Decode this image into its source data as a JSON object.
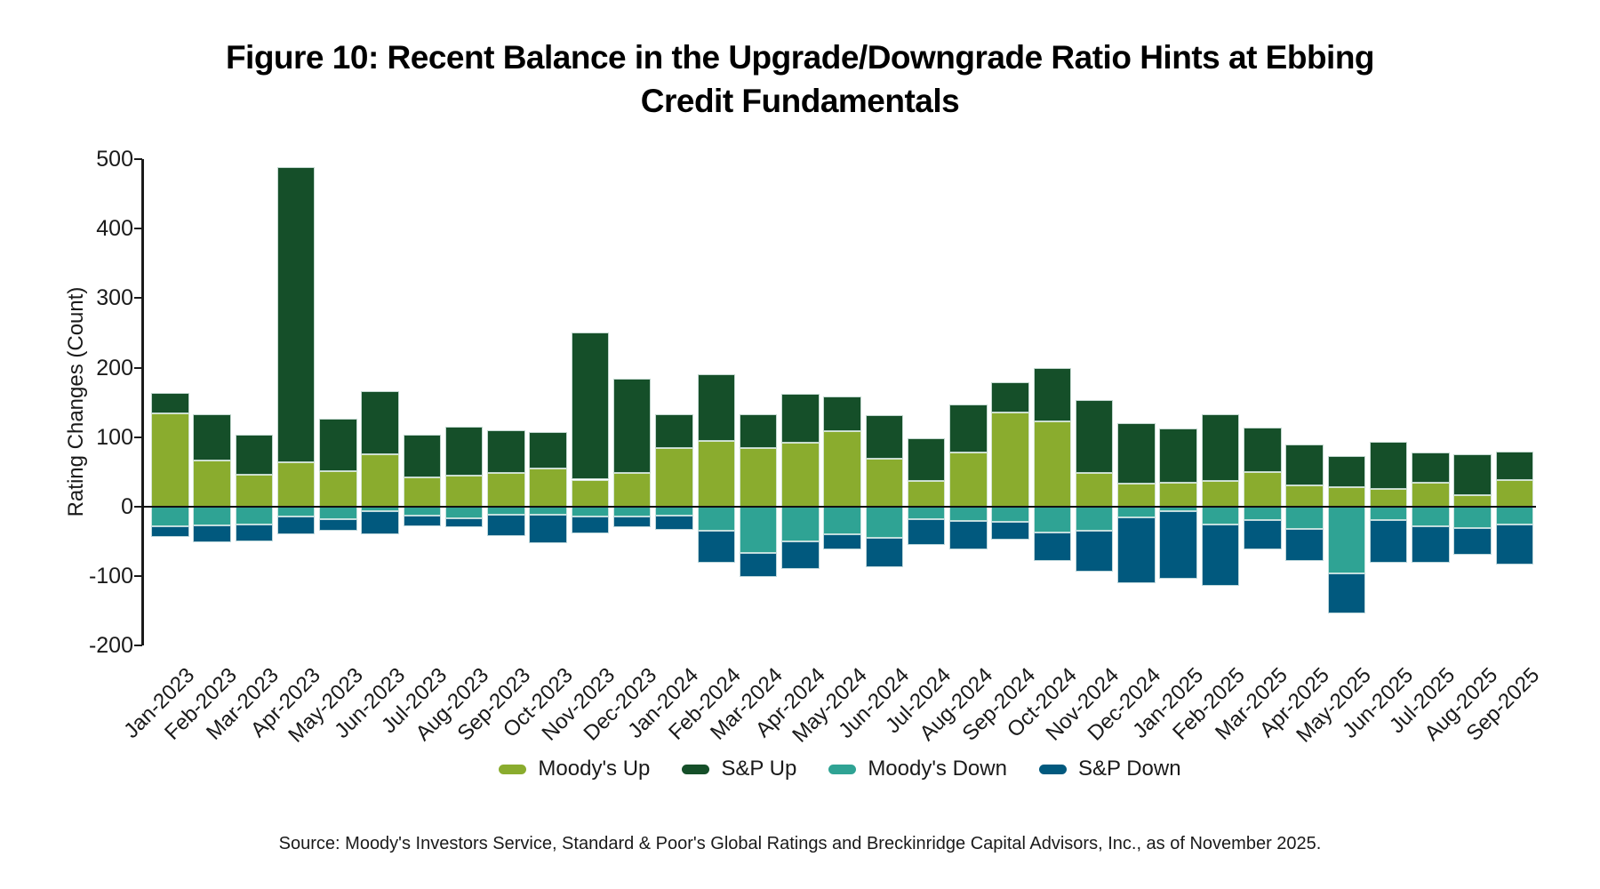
{
  "title": {
    "full": "Figure 10: Recent Balance in the Upgrade/Downgrade Ratio Hints at Ebbing Credit Fundamentals",
    "lines": [
      "Figure 10: Recent Balance in the Upgrade/Downgrade Ratio Hints at Ebbing",
      "Credit Fundamentals"
    ]
  },
  "y_axis": {
    "label": "Rating Changes (Count)",
    "ticks": [
      500,
      400,
      300,
      200,
      100,
      0,
      -100,
      -200
    ]
  },
  "source_note": "Source: Moody's Investors Service, Standard & Poor's Global Ratings and Breckinridge Capital Advisors, Inc., as of November 2025.",
  "colors": {
    "moodys_up": "#8AAC2E",
    "sp_up": "#154F29",
    "moodys_down": "#2FA394",
    "sp_down": "#01597E",
    "axis": "#1a1a1a",
    "background": "#ffffff"
  },
  "chart_data": {
    "type": "bar",
    "stacked": true,
    "grid": false,
    "legend_position": "bottom",
    "title": "Figure 10: Recent Balance in the Upgrade/Downgrade Ratio Hints at Ebbing Credit Fundamentals",
    "xlabel": "",
    "ylabel": "Rating Changes (Count)",
    "ylim": [
      -200,
      500
    ],
    "categories": [
      "Jan-2023",
      "Feb-2023",
      "Mar-2023",
      "Apr-2023",
      "May-2023",
      "Jun-2023",
      "Jul-2023",
      "Aug-2023",
      "Sep-2023",
      "Oct-2023",
      "Nov-2023",
      "Dec-2023",
      "Jan-2024",
      "Feb-2024",
      "Mar-2024",
      "Apr-2024",
      "May-2024",
      "Jun-2024",
      "Jul-2024",
      "Aug-2024",
      "Sep-2024",
      "Oct-2024",
      "Nov-2024",
      "Dec-2024",
      "Jan-2025",
      "Feb-2025",
      "Mar-2025",
      "Apr-2025",
      "May-2025",
      "Jun-2025",
      "Jul-2025",
      "Aug-2025",
      "Sep-2025"
    ],
    "series": [
      {
        "name": "Moody's Up",
        "color": "#8AAC2E",
        "values": [
          134,
          67,
          46,
          64,
          51,
          75,
          42,
          45,
          48,
          55,
          39,
          48,
          85,
          95,
          85,
          92,
          109,
          69,
          37,
          78,
          136,
          123,
          49,
          33,
          34,
          37,
          50,
          31,
          28,
          25,
          35,
          16,
          38
        ]
      },
      {
        "name": "S&P Up",
        "color": "#154F29",
        "values": [
          30,
          66,
          57,
          425,
          76,
          91,
          61,
          70,
          62,
          52,
          212,
          136,
          48,
          96,
          48,
          71,
          50,
          63,
          62,
          69,
          43,
          77,
          104,
          87,
          78,
          96,
          64,
          59,
          45,
          68,
          43,
          59,
          41
        ]
      },
      {
        "name": "Moody's Down",
        "color": "#2FA394",
        "values": [
          -28,
          -27,
          -26,
          -14,
          -18,
          -7,
          -13,
          -16,
          -11,
          -12,
          -14,
          -14,
          -13,
          -34,
          -67,
          -50,
          -40,
          -45,
          -18,
          -20,
          -22,
          -37,
          -35,
          -15,
          -7,
          -25,
          -19,
          -32,
          -96,
          -19,
          -28,
          -31,
          -25
        ]
      },
      {
        "name": "S&P Down",
        "color": "#01597E",
        "values": [
          -15,
          -24,
          -24,
          -26,
          -17,
          -33,
          -15,
          -13,
          -31,
          -40,
          -24,
          -15,
          -20,
          -46,
          -34,
          -39,
          -22,
          -42,
          -37,
          -42,
          -25,
          -41,
          -59,
          -95,
          -97,
          -89,
          -42,
          -46,
          -58,
          -62,
          -53,
          -38,
          -58
        ]
      }
    ]
  }
}
